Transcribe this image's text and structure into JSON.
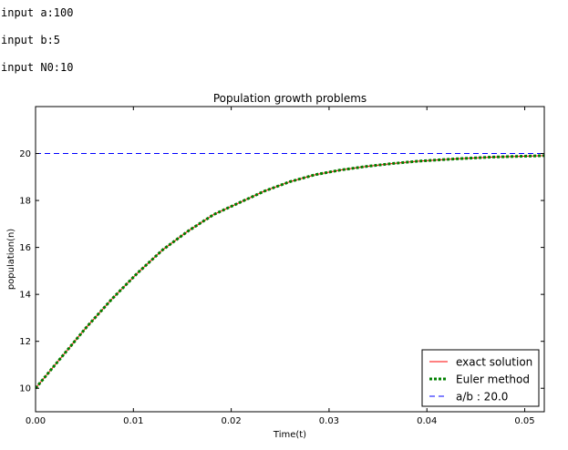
{
  "console": {
    "lines": [
      "input a:100",
      "input b:5",
      "input N0:10"
    ]
  },
  "chart_data": {
    "type": "line",
    "title": "Population growth problems",
    "xlabel": "Time(t)",
    "ylabel": "population(n)",
    "xlim": [
      0.0,
      0.052
    ],
    "ylim": [
      9.0,
      22.0
    ],
    "xticks": [
      "0.00",
      "0.01",
      "0.02",
      "0.03",
      "0.04",
      "0.05"
    ],
    "yticks": [
      "10",
      "12",
      "14",
      "16",
      "18",
      "20"
    ],
    "x": [
      0.0,
      0.0026,
      0.0052,
      0.0078,
      0.0104,
      0.013,
      0.0156,
      0.0182,
      0.0208,
      0.0234,
      0.026,
      0.0286,
      0.0312,
      0.0338,
      0.0364,
      0.039,
      0.0416,
      0.0442,
      0.0468,
      0.0494,
      0.052
    ],
    "series": [
      {
        "name": "exact solution",
        "color": "#ff0000",
        "style": "solid",
        "values": [
          10.0,
          11.3,
          12.6,
          13.8,
          14.9,
          15.9,
          16.7,
          17.4,
          17.9,
          18.4,
          18.8,
          19.1,
          19.3,
          19.45,
          19.57,
          19.67,
          19.74,
          19.8,
          19.85,
          19.88,
          19.91
        ]
      },
      {
        "name": "Euler method",
        "color": "#008000",
        "style": "dotted",
        "values": [
          10.0,
          11.3,
          12.6,
          13.8,
          14.9,
          15.9,
          16.7,
          17.4,
          17.9,
          18.4,
          18.8,
          19.1,
          19.3,
          19.45,
          19.57,
          19.67,
          19.74,
          19.8,
          19.85,
          19.88,
          19.91
        ]
      },
      {
        "name": "a/b : 20.0",
        "color": "#0000ff",
        "style": "dashed",
        "values": [
          20.0,
          20.0,
          20.0,
          20.0,
          20.0,
          20.0,
          20.0,
          20.0,
          20.0,
          20.0,
          20.0,
          20.0,
          20.0,
          20.0,
          20.0,
          20.0,
          20.0,
          20.0,
          20.0,
          20.0,
          20.0
        ]
      }
    ],
    "legend": {
      "position": "lower right"
    },
    "grid": false
  }
}
